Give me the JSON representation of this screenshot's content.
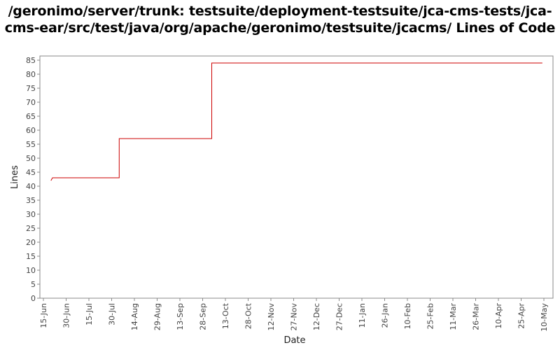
{
  "chart_data": {
    "type": "line",
    "step": true,
    "title": "/geronimo/server/trunk: testsuite/deployment-testsuite/jca-cms-tests/jca-cms-ear/src/test/java/org/apache/geronimo/testsuite/jcacms/ Lines of Code",
    "xlabel": "Date",
    "ylabel": "Lines",
    "ylim": [
      0,
      85
    ],
    "yticks": [
      0,
      5,
      10,
      15,
      20,
      25,
      30,
      35,
      40,
      45,
      50,
      55,
      60,
      65,
      70,
      75,
      80,
      85
    ],
    "xticks": [
      "15-Jun",
      "30-Jun",
      "15-Jul",
      "30-Jul",
      "14-Aug",
      "29-Aug",
      "13-Sep",
      "28-Sep",
      "13-Oct",
      "28-Oct",
      "12-Nov",
      "27-Nov",
      "12-Dec",
      "27-Dec",
      "11-Jan",
      "26-Jan",
      "10-Feb",
      "25-Feb",
      "11-Mar",
      "26-Mar",
      "10-Apr",
      "25-Apr",
      "10-May"
    ],
    "series": [
      {
        "color": "#cc0000",
        "points": [
          {
            "x": "20-Jun",
            "y": 42
          },
          {
            "x": "21-Jun",
            "y": 43
          },
          {
            "x": "4-Aug",
            "y": 43
          },
          {
            "x": "4-Aug",
            "y": 57
          },
          {
            "x": "4-Oct",
            "y": 57
          },
          {
            "x": "4-Oct",
            "y": 84
          },
          {
            "x": "9-May",
            "y": 84
          }
        ]
      }
    ],
    "grid": false,
    "legend": "none"
  }
}
